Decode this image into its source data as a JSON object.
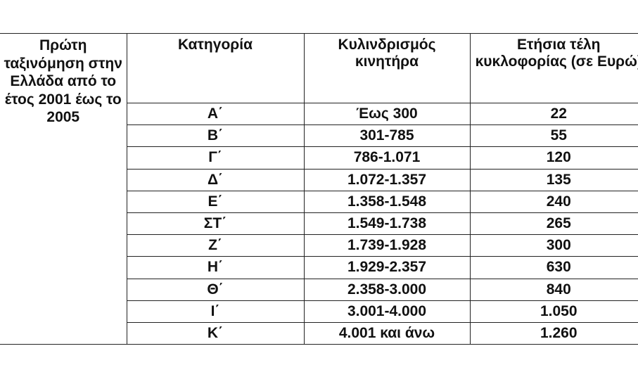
{
  "table": {
    "first_column_label": "Πρώτη ταξινόμηση στην Ελλάδα από το έτος 2001 έως το 2005",
    "headers": [
      "Κατηγορία",
      "Κυλινδρισμός κινητήρα",
      "Ετήσια τέλη κυκλοφορίας (σε Ευρώ)"
    ],
    "rows": [
      [
        "Α΄",
        "Έως 300",
        "22"
      ],
      [
        "Β΄",
        "301-785",
        "55"
      ],
      [
        "Γ΄",
        "786-1.071",
        "120"
      ],
      [
        "Δ΄",
        "1.072-1.357",
        "135"
      ],
      [
        "Ε΄",
        "1.358-1.548",
        "240"
      ],
      [
        "ΣΤ΄",
        "1.549-1.738",
        "265"
      ],
      [
        "Ζ΄",
        "1.739-1.928",
        "300"
      ],
      [
        "Η΄",
        "1.929-2.357",
        "630"
      ],
      [
        "Θ΄",
        "2.358-3.000",
        "840"
      ],
      [
        "Ι΄",
        "3.001-4.000",
        "1.050"
      ],
      [
        "Κ΄",
        "4.001 και άνω",
        "1.260"
      ]
    ]
  }
}
